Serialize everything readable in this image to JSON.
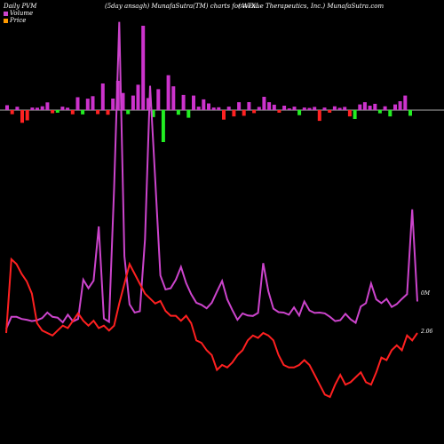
{
  "header": {
    "left": "Daily PVM",
    "middle": "(5day ansagh) MunafaSutra(TM) charts for ATXI",
    "right": "(Avenue  Therapeutics, Inc.) MunafaSutra.com"
  },
  "legend": {
    "volume_label": "Volume",
    "volume_color": "#cc44cc",
    "price_label": "Price",
    "price_color": "#ff9900"
  },
  "chart_data": {
    "type": "line",
    "title": "",
    "colors": {
      "volume_up": "#cc33cc",
      "volume_down_red": "#ff2222",
      "volume_down_green": "#22ee22",
      "price_line": "#ff2020",
      "volume_line": "#cc44cc",
      "zero_line": "#b0b0b0"
    },
    "annotations": {
      "volume_label": "0M",
      "price_label": "2.06"
    },
    "price_series": [
      2.06,
      2.36,
      2.34,
      2.3,
      2.27,
      2.22,
      2.1,
      2.07,
      2.06,
      2.05,
      2.07,
      2.09,
      2.08,
      2.11,
      2.14,
      2.11,
      2.09,
      2.11,
      2.08,
      2.09,
      2.07,
      2.09,
      2.18,
      2.26,
      2.34,
      2.3,
      2.26,
      2.22,
      2.2,
      2.18,
      2.19,
      2.15,
      2.13,
      2.13,
      2.11,
      2.13,
      2.1,
      2.03,
      2.02,
      1.99,
      1.97,
      1.91,
      1.93,
      1.92,
      1.94,
      1.97,
      1.99,
      2.03,
      2.05,
      2.04,
      2.06,
      2.05,
      2.03,
      1.97,
      1.93,
      1.92,
      1.92,
      1.93,
      1.95,
      1.93,
      1.89,
      1.85,
      1.81,
      1.8,
      1.85,
      1.89,
      1.85,
      1.86,
      1.88,
      1.9,
      1.86,
      1.85,
      1.9,
      1.96,
      1.95,
      1.99,
      2.01,
      1.99,
      2.05,
      2.03,
      2.06
    ],
    "volume_line_series": [
      0.1,
      0.38,
      0.38,
      0.33,
      0.31,
      0.28,
      0.3,
      0.35,
      0.48,
      0.38,
      0.36,
      0.25,
      0.43,
      0.27,
      0.33,
      1.25,
      1.05,
      1.23,
      2.5,
      0.34,
      0.26,
      3.4,
      7.3,
      1.8,
      0.67,
      0.48,
      0.51,
      2.2,
      5.8,
      3.6,
      1.35,
      1.02,
      1.05,
      1.25,
      1.55,
      1.17,
      0.91,
      0.71,
      0.66,
      0.58,
      0.71,
      0.97,
      1.22,
      0.79,
      0.54,
      0.31,
      0.46,
      0.41,
      0.4,
      0.47,
      1.64,
      0.98,
      0.57,
      0.49,
      0.48,
      0.43,
      0.6,
      0.41,
      0.74,
      0.53,
      0.47,
      0.48,
      0.46,
      0.38,
      0.28,
      0.3,
      0.45,
      0.32,
      0.24,
      0.62,
      0.7,
      1.16,
      0.79,
      0.7,
      0.8,
      0.61,
      0.68,
      0.8,
      0.91,
      2.9,
      0.74
    ],
    "volume_bars": [
      {
        "v": 5.5,
        "c": "up"
      },
      {
        "v": -4.6,
        "c": "red"
      },
      {
        "v": 3.8,
        "c": "up"
      },
      {
        "v": -14.3,
        "c": "red"
      },
      {
        "v": -11.5,
        "c": "red"
      },
      {
        "v": 2.9,
        "c": "up"
      },
      {
        "v": 2.7,
        "c": "up"
      },
      {
        "v": 4.3,
        "c": "up"
      },
      {
        "v": 8.7,
        "c": "up"
      },
      {
        "v": -3.5,
        "c": "red"
      },
      {
        "v": -2.9,
        "c": "green"
      },
      {
        "v": 3.9,
        "c": "up"
      },
      {
        "v": 2.7,
        "c": "up"
      },
      {
        "v": -4.7,
        "c": "red"
      },
      {
        "v": 14.5,
        "c": "up"
      },
      {
        "v": -4.8,
        "c": "green"
      },
      {
        "v": 12.9,
        "c": "up"
      },
      {
        "v": 15.7,
        "c": "up"
      },
      {
        "v": -4.5,
        "c": "red"
      },
      {
        "v": 30.0,
        "c": "up"
      },
      {
        "v": -5.2,
        "c": "red"
      },
      {
        "v": 13.0,
        "c": "up"
      },
      {
        "v": 33.0,
        "c": "up"
      },
      {
        "v": 19.3,
        "c": "up"
      },
      {
        "v": -4.5,
        "c": "green"
      },
      {
        "v": 16.4,
        "c": "up"
      },
      {
        "v": 28.6,
        "c": "up"
      },
      {
        "v": 95.0,
        "c": "up"
      },
      {
        "v": 13.6,
        "c": "up"
      },
      {
        "v": -7.9,
        "c": "green"
      },
      {
        "v": 23.6,
        "c": "up"
      },
      {
        "v": -36.0,
        "c": "green"
      },
      {
        "v": 39.3,
        "c": "up"
      },
      {
        "v": 26.8,
        "c": "up"
      },
      {
        "v": -5.2,
        "c": "green"
      },
      {
        "v": 17.1,
        "c": "up"
      },
      {
        "v": -8.6,
        "c": "green"
      },
      {
        "v": 16.4,
        "c": "up"
      },
      {
        "v": 3.9,
        "c": "up"
      },
      {
        "v": 12.1,
        "c": "up"
      },
      {
        "v": 7.5,
        "c": "up"
      },
      {
        "v": 2.9,
        "c": "up"
      },
      {
        "v": 3.2,
        "c": "up"
      },
      {
        "v": -10.7,
        "c": "red"
      },
      {
        "v": 3.9,
        "c": "up"
      },
      {
        "v": -7.1,
        "c": "red"
      },
      {
        "v": 8.9,
        "c": "up"
      },
      {
        "v": -6.4,
        "c": "red"
      },
      {
        "v": 9.0,
        "c": "up"
      },
      {
        "v": -3.4,
        "c": "red"
      },
      {
        "v": 3.6,
        "c": "up"
      },
      {
        "v": 15.0,
        "c": "up"
      },
      {
        "v": 8.9,
        "c": "up"
      },
      {
        "v": 6.1,
        "c": "up"
      },
      {
        "v": -2.9,
        "c": "red"
      },
      {
        "v": 5.0,
        "c": "up"
      },
      {
        "v": 1.9,
        "c": "up"
      },
      {
        "v": 3.9,
        "c": "up"
      },
      {
        "v": -5.7,
        "c": "green"
      },
      {
        "v": 2.9,
        "c": "up"
      },
      {
        "v": 2.4,
        "c": "up"
      },
      {
        "v": 3.6,
        "c": "up"
      },
      {
        "v": -12.1,
        "c": "red"
      },
      {
        "v": 2.9,
        "c": "up"
      },
      {
        "v": -2.9,
        "c": "red"
      },
      {
        "v": 4.3,
        "c": "up"
      },
      {
        "v": 2.5,
        "c": "up"
      },
      {
        "v": 3.6,
        "c": "up"
      },
      {
        "v": -7.1,
        "c": "red"
      },
      {
        "v": -10.0,
        "c": "green"
      },
      {
        "v": 6.4,
        "c": "up"
      },
      {
        "v": 8.9,
        "c": "up"
      },
      {
        "v": 5.0,
        "c": "up"
      },
      {
        "v": 7.1,
        "c": "up"
      },
      {
        "v": -3.6,
        "c": "green"
      },
      {
        "v": 4.3,
        "c": "up"
      },
      {
        "v": -7.1,
        "c": "green"
      },
      {
        "v": 6.4,
        "c": "up"
      },
      {
        "v": 10.0,
        "c": "up"
      },
      {
        "v": 16.4,
        "c": "up"
      },
      {
        "v": -6.4,
        "c": "green"
      }
    ]
  }
}
